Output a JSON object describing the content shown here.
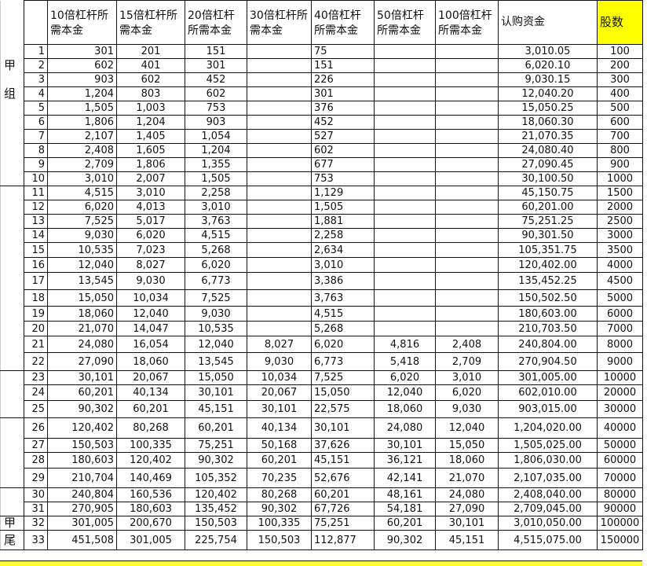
{
  "headers": [
    "10倍杠杆所需本金",
    "15倍杠杆所需本金",
    "20倍杠杆所需本金",
    "30倍杠杆所需本金",
    "40倍杠杆所需本金",
    "50倍杠杆所需本金",
    "100倍杠杆所需本金",
    "认购资金",
    "股数"
  ],
  "highlight_color": "#ffff00",
  "rows": [
    {
      "g": "",
      "i": "1",
      "v": [
        "301",
        "201",
        "151",
        "",
        "75",
        "",
        "",
        "3,010.05",
        "100"
      ]
    },
    {
      "g": "甲",
      "i": "2",
      "v": [
        "602",
        "401",
        "301",
        "",
        "151",
        "",
        "",
        "6,020.10",
        "200"
      ]
    },
    {
      "g": "",
      "i": "3",
      "v": [
        "903",
        "602",
        "452",
        "",
        "226",
        "",
        "",
        "9,030.15",
        "300"
      ]
    },
    {
      "g": "组",
      "i": "4",
      "v": [
        "1,204",
        "803",
        "602",
        "",
        "301",
        "",
        "",
        "12,040.20",
        "400"
      ]
    },
    {
      "g": "",
      "i": "5",
      "v": [
        "1,505",
        "1,003",
        "753",
        "",
        "376",
        "",
        "",
        "15,050.25",
        "500"
      ]
    },
    {
      "g": "",
      "i": "6",
      "v": [
        "1,806",
        "1,204",
        "903",
        "",
        "452",
        "",
        "",
        "18,060.30",
        "600"
      ]
    },
    {
      "g": "",
      "i": "7",
      "v": [
        "2,107",
        "1,405",
        "1,054",
        "",
        "527",
        "",
        "",
        "21,070.35",
        "700"
      ]
    },
    {
      "g": "",
      "i": "8",
      "v": [
        "2,408",
        "1,605",
        "1,204",
        "",
        "602",
        "",
        "",
        "24,080.40",
        "800"
      ]
    },
    {
      "g": "",
      "i": "9",
      "v": [
        "2,709",
        "1,806",
        "1,355",
        "",
        "677",
        "",
        "",
        "27,090.45",
        "900"
      ]
    },
    {
      "g": "",
      "i": "10",
      "v": [
        "3,010",
        "2,007",
        "1,505",
        "",
        "753",
        "",
        "",
        "30,100.50",
        "1000"
      ]
    },
    {
      "g": "",
      "i": "11",
      "v": [
        "4,515",
        "3,010",
        "2,258",
        "",
        "1,129",
        "",
        "",
        "45,150.75",
        "1500"
      ]
    },
    {
      "g": "",
      "i": "12",
      "v": [
        "6,020",
        "4,013",
        "3,010",
        "",
        "1,505",
        "",
        "",
        "60,201.00",
        "2000"
      ]
    },
    {
      "g": "",
      "i": "13",
      "v": [
        "7,525",
        "5,017",
        "3,763",
        "",
        "1,881",
        "",
        "",
        "75,251.25",
        "2500"
      ]
    },
    {
      "g": "",
      "i": "14",
      "v": [
        "9,030",
        "6,020",
        "4,515",
        "",
        "2,258",
        "",
        "",
        "90,301.50",
        "3000"
      ]
    },
    {
      "g": "",
      "i": "15",
      "v": [
        "10,535",
        "7,023",
        "5,268",
        "",
        "2,634",
        "",
        "",
        "105,351.75",
        "3500"
      ]
    },
    {
      "g": "",
      "i": "16",
      "v": [
        "12,040",
        "8,027",
        "6,020",
        "",
        "3,010",
        "",
        "",
        "120,402.00",
        "4000"
      ]
    },
    {
      "g": "",
      "i": "17",
      "v": [
        "13,545",
        "9,030",
        "6,773",
        "",
        "3,386",
        "",
        "",
        "135,452.25",
        "4500"
      ]
    },
    {
      "g": "",
      "i": "18",
      "v": [
        "15,050",
        "10,034",
        "7,525",
        "",
        "3,763",
        "",
        "",
        "150,502.50",
        "5000"
      ]
    },
    {
      "g": "",
      "i": "19",
      "v": [
        "18,060",
        "12,040",
        "9,030",
        "",
        "4,515",
        "",
        "",
        "180,603.00",
        "6000"
      ]
    },
    {
      "g": "",
      "i": "20",
      "v": [
        "21,070",
        "14,047",
        "10,535",
        "",
        "5,268",
        "",
        "",
        "210,703.50",
        "7000"
      ]
    },
    {
      "g": "",
      "i": "21",
      "v": [
        "24,080",
        "16,054",
        "12,040",
        "8,027",
        "6,020",
        "4,816",
        "2,408",
        "240,804.00",
        "8000"
      ]
    },
    {
      "g": "",
      "i": "22",
      "v": [
        "27,090",
        "18,060",
        "13,545",
        "9,030",
        "6,773",
        "5,418",
        "2,709",
        "270,904.50",
        "9000"
      ]
    },
    {
      "g": "",
      "i": "23",
      "v": [
        "30,101",
        "20,067",
        "15,050",
        "10,034",
        "7,525",
        "6,020",
        "3,010",
        "301,005.00",
        "10000"
      ]
    },
    {
      "g": "",
      "i": "24",
      "v": [
        "60,201",
        "40,134",
        "30,101",
        "20,067",
        "15,050",
        "12,040",
        "6,020",
        "602,010.00",
        "20000"
      ]
    },
    {
      "g": "",
      "i": "25",
      "v": [
        "90,302",
        "60,201",
        "45,151",
        "30,101",
        "22,575",
        "18,060",
        "9,030",
        "903,015.00",
        "30000"
      ]
    },
    {
      "g": "",
      "i": "26",
      "v": [
        "120,402",
        "80,268",
        "60,201",
        "40,134",
        "30,101",
        "24,080",
        "12,040",
        "1,204,020.00",
        "40000"
      ]
    },
    {
      "g": "",
      "i": "27",
      "v": [
        "150,503",
        "100,335",
        "75,251",
        "50,168",
        "37,626",
        "30,101",
        "15,050",
        "1,505,025.00",
        "50000"
      ]
    },
    {
      "g": "",
      "i": "28",
      "v": [
        "180,603",
        "120,402",
        "90,302",
        "60,201",
        "45,151",
        "36,121",
        "18,060",
        "1,806,030.00",
        "60000"
      ]
    },
    {
      "g": "",
      "i": "29",
      "v": [
        "210,704",
        "140,469",
        "105,352",
        "70,235",
        "52,676",
        "42,141",
        "21,070",
        "2,107,035.00",
        "70000"
      ]
    },
    {
      "g": "",
      "i": "30",
      "v": [
        "240,804",
        "160,536",
        "120,402",
        "80,268",
        "60,201",
        "48,161",
        "24,080",
        "2,408,040.00",
        "80000"
      ]
    },
    {
      "g": "",
      "i": "31",
      "v": [
        "270,905",
        "180,603",
        "135,452",
        "90,302",
        "67,726",
        "54,181",
        "27,090",
        "2,709,045.00",
        "90000"
      ]
    },
    {
      "g": "甲",
      "i": "32",
      "v": [
        "301,005",
        "200,670",
        "150,503",
        "100,335",
        "75,251",
        "60,201",
        "30,101",
        "3,010,050.00",
        "100000"
      ]
    },
    {
      "g": "尾",
      "i": "33",
      "v": [
        "451,508",
        "301,005",
        "225,754",
        "150,503",
        "112,877",
        "90,302",
        "45,151",
        "4,515,075.00",
        "150000"
      ]
    }
  ]
}
